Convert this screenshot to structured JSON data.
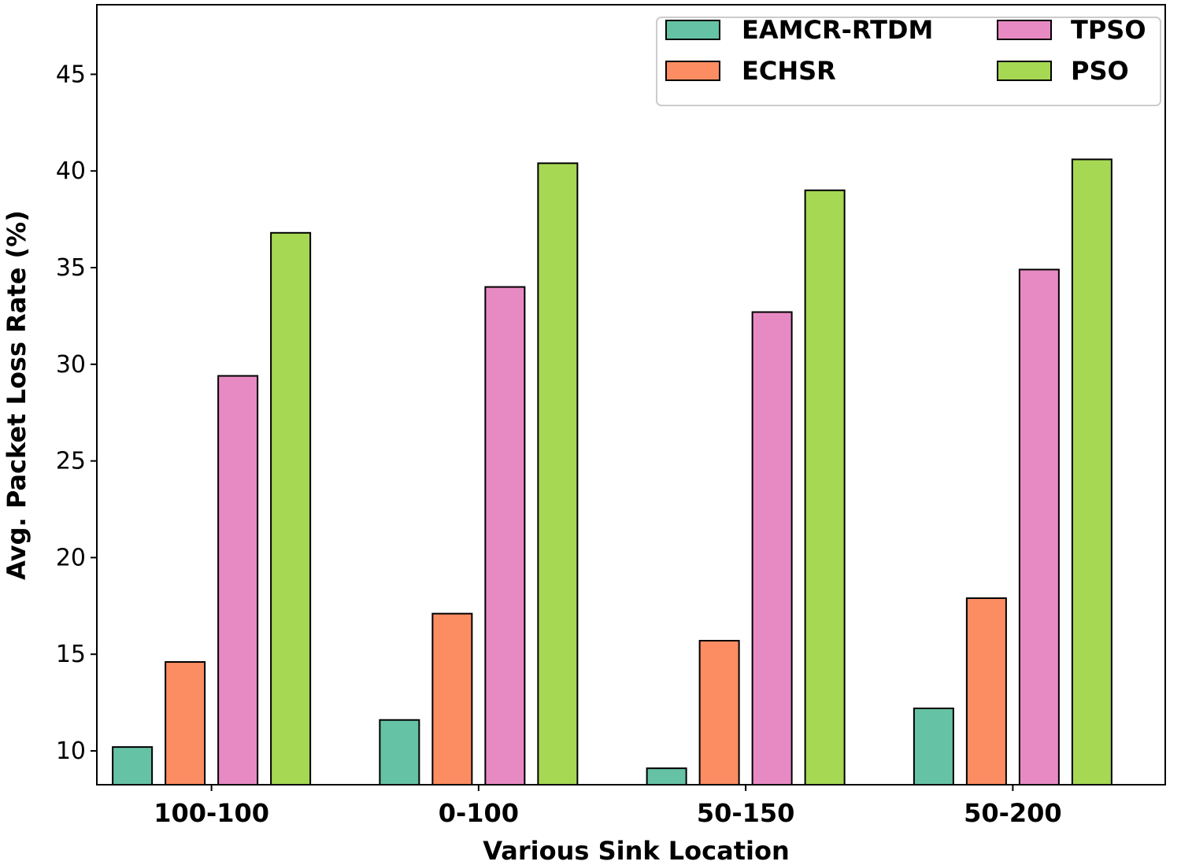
{
  "chart_data": {
    "type": "bar",
    "title": "",
    "xlabel": "Various Sink Location",
    "ylabel": "Avg. Packet Loss Rate (%)",
    "categories": [
      "100-100",
      "0-100",
      "50-150",
      "50-200"
    ],
    "ylim": [
      8.25,
      48.6
    ],
    "yticks": [
      10,
      15,
      20,
      25,
      30,
      35,
      40,
      45
    ],
    "grid": false,
    "legend_position": "top-right",
    "series": [
      {
        "name": "EAMCR-RTDM",
        "color": "#66c2a5",
        "values": [
          10.2,
          11.6,
          9.1,
          12.2
        ]
      },
      {
        "name": "ECHSR",
        "color": "#fc8d62",
        "values": [
          14.6,
          17.1,
          15.7,
          17.9
        ]
      },
      {
        "name": "TPSO",
        "color": "#e78ac3",
        "values": [
          29.4,
          34.0,
          32.7,
          34.9
        ]
      },
      {
        "name": "PSO",
        "color": "#a6d854",
        "values": [
          36.8,
          40.4,
          39.0,
          40.6
        ]
      }
    ]
  }
}
